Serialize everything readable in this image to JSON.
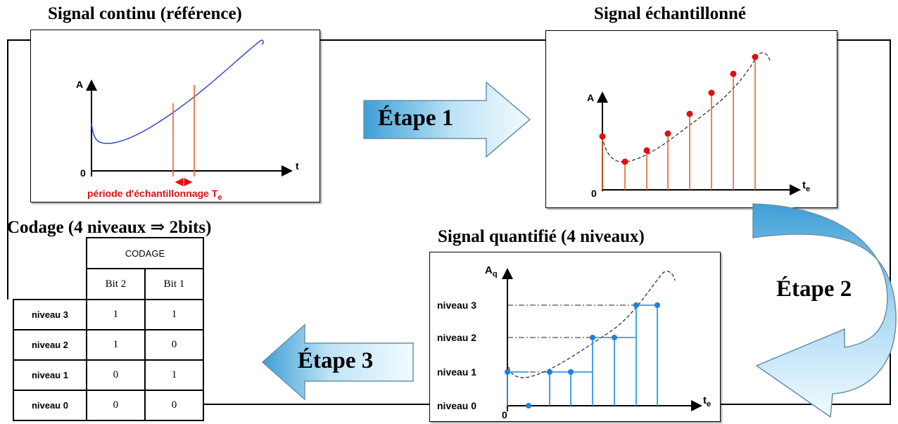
{
  "colors": {
    "curve_blue": "#3b55c8",
    "sample_red": "#dd1111",
    "stem_orange": "#f06030",
    "stem_blue": "#2f9be6",
    "point_blue": "#1e7fe0",
    "arrow_light": "#e8f6fd",
    "arrow_dark": "#3e9fd6"
  },
  "panels": {
    "continuous": {
      "title": "Signal continu (référence)",
      "y_axis": "A",
      "x_axis": "t",
      "origin": "0",
      "period_label": "période d'échantillonnage T",
      "period_sub": "e"
    },
    "sampled": {
      "title": "Signal échantillonné",
      "y_axis": "A",
      "x_axis": "t",
      "x_axis_sub": "e",
      "origin": "0"
    },
    "quantized": {
      "title": "Signal quantifié (4 niveaux)",
      "y_axis": "A",
      "y_axis_sub": "q",
      "x_axis": "t",
      "x_axis_sub": "e",
      "origin": "0",
      "levels": [
        "niveau 3",
        "niveau 2",
        "niveau 1",
        "niveau 0"
      ]
    }
  },
  "steps": {
    "step1": "Étape 1",
    "step2": "Étape 2",
    "step3": "Étape 3"
  },
  "coding": {
    "title": "Codage (4 niveaux ⇒ 2bits)",
    "header": "CODAGE",
    "columns": [
      "Bit 2",
      "Bit 1"
    ],
    "rows": [
      {
        "label": "niveau 3",
        "bit2": "1",
        "bit1": "1"
      },
      {
        "label": "niveau 2",
        "bit2": "1",
        "bit1": "0"
      },
      {
        "label": "niveau 1",
        "bit2": "0",
        "bit1": "1"
      },
      {
        "label": "niveau 0",
        "bit2": "0",
        "bit1": "0"
      }
    ]
  }
}
